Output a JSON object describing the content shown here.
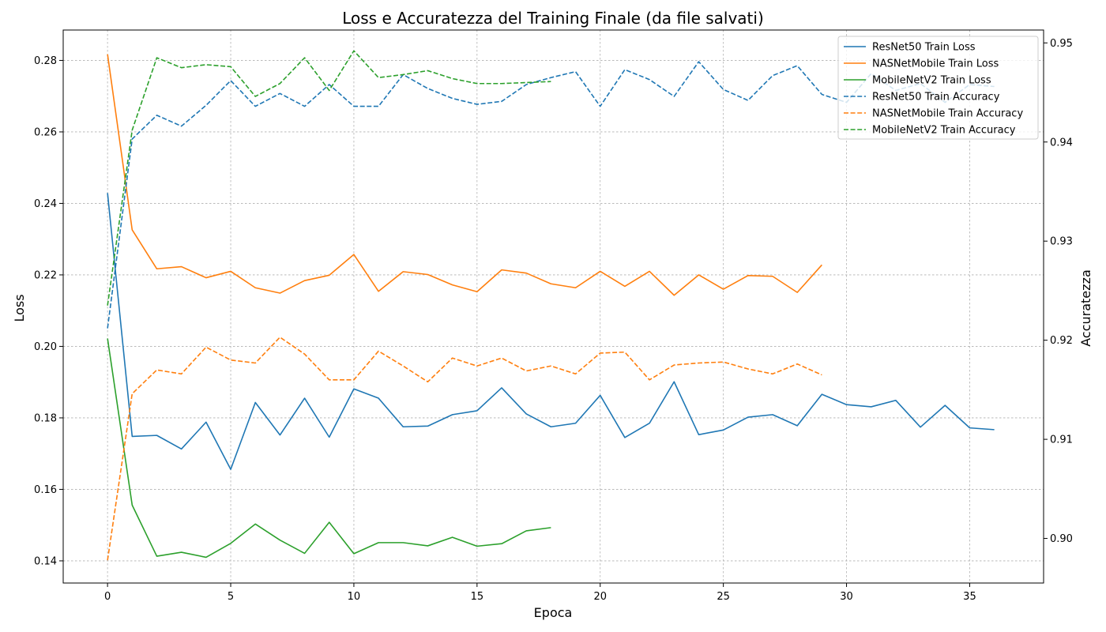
{
  "chart_data": {
    "type": "line",
    "title": "Loss e Accuratezza del Training Finale (da file salvati)",
    "xlabel": "Epoca",
    "ylabel": "Loss",
    "y2label": "Accuratezza",
    "xlim": [
      -1.8,
      38.0
    ],
    "ylim": [
      0.1338,
      0.2885
    ],
    "y2lim": [
      0.8955,
      0.9513
    ],
    "xticks": [
      0,
      5,
      10,
      15,
      20,
      25,
      30,
      35
    ],
    "yticks": [
      0.14,
      0.16,
      0.18,
      0.2,
      0.22,
      0.24,
      0.26,
      0.28
    ],
    "y2ticks": [
      0.9,
      0.91,
      0.92,
      0.93,
      0.94,
      0.95
    ],
    "grid": true,
    "legend_position": "top-right",
    "series": [
      {
        "name": "ResNet50 Train Loss",
        "axis": "left",
        "color": "#1f77b4",
        "dash": "solid",
        "values": [
          0.2429,
          0.1748,
          0.1751,
          0.1713,
          0.1788,
          0.1656,
          0.1843,
          0.1752,
          0.1855,
          0.1746,
          0.1881,
          0.1855,
          0.1775,
          0.1777,
          0.1809,
          0.182,
          0.1884,
          0.1811,
          0.1775,
          0.1785,
          0.1863,
          0.1745,
          0.1785,
          0.1901,
          0.1753,
          0.1766,
          0.1802,
          0.1809,
          0.1778,
          0.1866,
          0.1837,
          0.1831,
          0.1849,
          0.1774,
          0.1835,
          0.1772,
          0.1767
        ]
      },
      {
        "name": "NASNetMobile Train Loss",
        "axis": "left",
        "color": "#ff7f0e",
        "dash": "solid",
        "values": [
          0.2817,
          0.2326,
          0.2217,
          0.2223,
          0.2192,
          0.221,
          0.2164,
          0.2149,
          0.2184,
          0.2199,
          0.2257,
          0.2154,
          0.2209,
          0.2201,
          0.2172,
          0.2153,
          0.2214,
          0.2205,
          0.2175,
          0.2164,
          0.221,
          0.2168,
          0.221,
          0.2143,
          0.22,
          0.216,
          0.2198,
          0.2196,
          0.2151,
          0.2228
        ]
      },
      {
        "name": "MobileNetV2 Train Loss",
        "axis": "left",
        "color": "#2ca02c",
        "dash": "solid",
        "values": [
          0.2022,
          0.1556,
          0.1413,
          0.1424,
          0.141,
          0.1449,
          0.1503,
          0.1458,
          0.1421,
          0.1508,
          0.142,
          0.1451,
          0.1451,
          0.1442,
          0.1466,
          0.1441,
          0.1448,
          0.1484,
          0.1493
        ]
      },
      {
        "name": "ResNet50 Train Accuracy",
        "axis": "right",
        "color": "#1f77b4",
        "dash": "dashed",
        "values": [
          0.9212,
          0.9403,
          0.9427,
          0.9416,
          0.9437,
          0.9462,
          0.9436,
          0.9449,
          0.9436,
          0.9458,
          0.9436,
          0.9436,
          0.9468,
          0.9454,
          0.9444,
          0.9438,
          0.9441,
          0.9458,
          0.9465,
          0.9471,
          0.9436,
          0.9473,
          0.9463,
          0.9446,
          0.9481,
          0.9453,
          0.9442,
          0.9467,
          0.9477,
          0.9448,
          0.944,
          0.9469,
          0.9452,
          0.9459,
          0.944,
          0.9458,
          0.9456
        ]
      },
      {
        "name": "NASNetMobile Train Accuracy",
        "axis": "right",
        "color": "#ff7f0e",
        "dash": "dashed",
        "values": [
          0.8978,
          0.9146,
          0.917,
          0.9166,
          0.9193,
          0.918,
          0.9177,
          0.9203,
          0.9186,
          0.916,
          0.916,
          0.9189,
          0.9174,
          0.9158,
          0.9182,
          0.9174,
          0.9182,
          0.9169,
          0.9174,
          0.9166,
          0.9187,
          0.9188,
          0.916,
          0.9175,
          0.9177,
          0.9178,
          0.9171,
          0.9166,
          0.9176,
          0.9165
        ]
      },
      {
        "name": "MobileNetV2 Train Accuracy",
        "axis": "right",
        "color": "#2ca02c",
        "dash": "dashed",
        "values": [
          0.9235,
          0.9412,
          0.9485,
          0.9475,
          0.9478,
          0.9476,
          0.9446,
          0.9459,
          0.9485,
          0.9452,
          0.9492,
          0.9465,
          0.9468,
          0.9472,
          0.9464,
          0.9459,
          0.9459,
          0.946,
          0.9461
        ]
      }
    ]
  }
}
